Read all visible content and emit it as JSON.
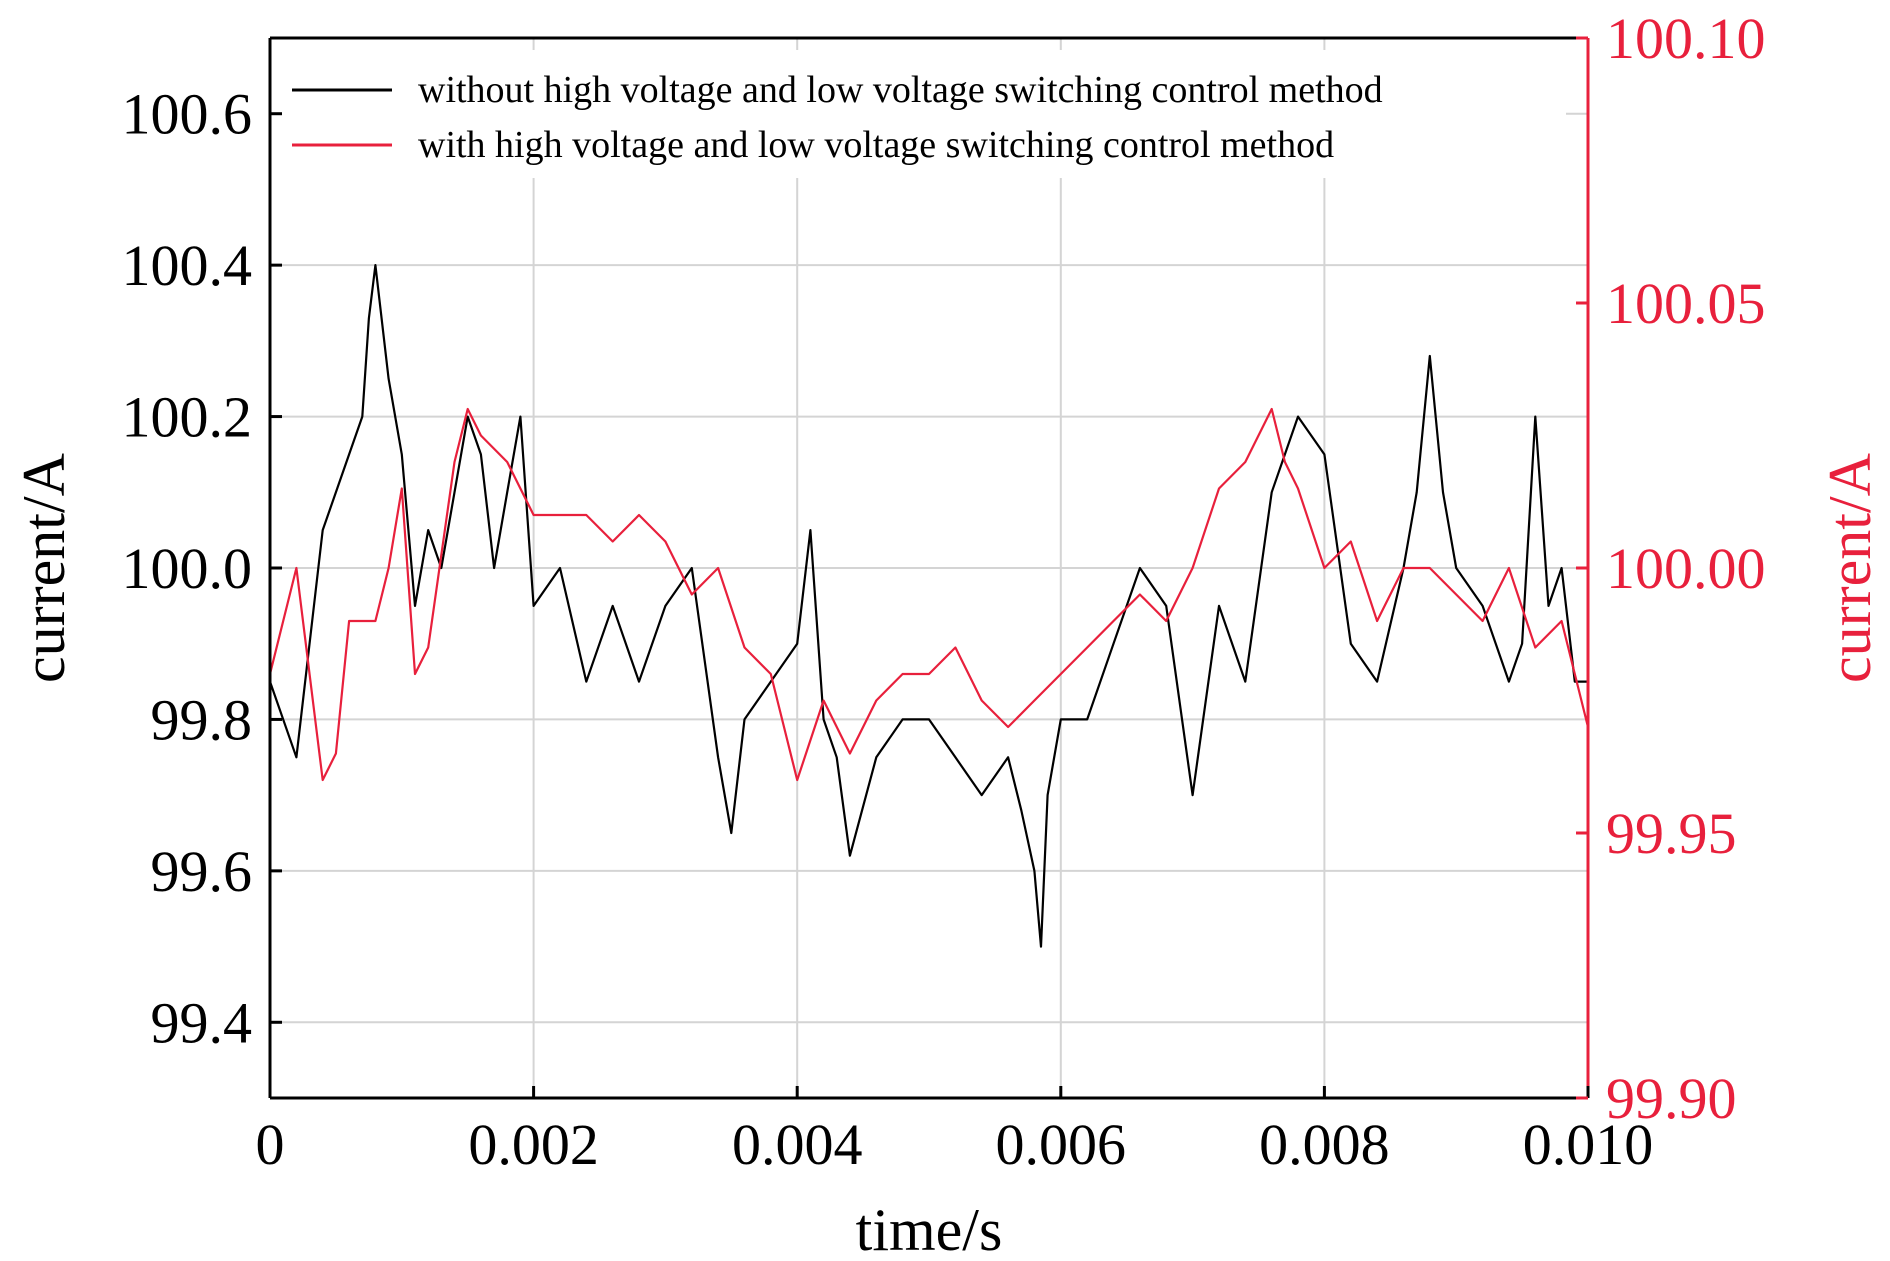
{
  "chart_data": {
    "type": "line",
    "xlabel": "time/s",
    "ylabel_left": "current/A",
    "ylabel_right": "current/A",
    "xlim": [
      0,
      0.01
    ],
    "ylim_left": [
      99.3,
      100.7
    ],
    "ylim_right": [
      99.9,
      100.1
    ],
    "xticks": [
      0,
      0.002,
      0.004,
      0.006,
      0.008,
      0.01
    ],
    "xtick_labels": [
      "0",
      "0.002",
      "0.004",
      "0.006",
      "0.008",
      "0.010"
    ],
    "yticks_left": [
      99.4,
      99.6,
      99.8,
      100.0,
      100.2,
      100.4,
      100.6
    ],
    "ytick_labels_left": [
      "99.4",
      "99.6",
      "99.8",
      "100.0",
      "100.2",
      "100.4",
      "100.6"
    ],
    "yticks_right": [
      99.9,
      99.95,
      100.0,
      100.05,
      100.1
    ],
    "ytick_labels_right": [
      "99.90",
      "99.95",
      "100.00",
      "100.05",
      "100.10"
    ],
    "grid": true,
    "legend_position": "top",
    "colors": {
      "series1": "#000000",
      "series2": "#e8203c",
      "grid": "#d4d4d4",
      "right_axis": "#e8203c"
    },
    "series": [
      {
        "name": "without high voltage and low voltage switching control method",
        "axis": "left",
        "x": [
          0,
          0.0002,
          0.0004,
          0.0005,
          0.0006,
          0.0007,
          0.00075,
          0.0008,
          0.0009,
          0.001,
          0.0011,
          0.0012,
          0.0013,
          0.0014,
          0.0015,
          0.0016,
          0.0017,
          0.0018,
          0.0019,
          0.002,
          0.0022,
          0.0024,
          0.0025,
          0.0026,
          0.0028,
          0.003,
          0.0032,
          0.0034,
          0.0035,
          0.0036,
          0.0038,
          0.004,
          0.0041,
          0.0042,
          0.0043,
          0.0044,
          0.0046,
          0.0048,
          0.005,
          0.0052,
          0.0054,
          0.0056,
          0.0057,
          0.0058,
          0.00585,
          0.0059,
          0.006,
          0.0062,
          0.0064,
          0.0066,
          0.0068,
          0.007,
          0.0072,
          0.0074,
          0.0076,
          0.0078,
          0.008,
          0.0082,
          0.0084,
          0.0086,
          0.0087,
          0.0088,
          0.0089,
          0.009,
          0.0092,
          0.0094,
          0.0095,
          0.0096,
          0.0097,
          0.0098,
          0.0099,
          0.01
        ],
        "y": [
          99.85,
          99.75,
          100.05,
          100.1,
          100.15,
          100.2,
          100.33,
          100.4,
          100.25,
          100.15,
          99.95,
          100.05,
          100.0,
          100.1,
          100.2,
          100.15,
          100.0,
          100.1,
          100.2,
          99.95,
          100.0,
          99.85,
          99.9,
          99.95,
          99.85,
          99.95,
          100.0,
          99.75,
          99.65,
          99.8,
          99.85,
          99.9,
          100.05,
          99.8,
          99.75,
          99.62,
          99.75,
          99.8,
          99.8,
          99.75,
          99.7,
          99.75,
          99.68,
          99.6,
          99.5,
          99.7,
          99.8,
          99.8,
          99.9,
          100.0,
          99.95,
          99.7,
          99.95,
          99.85,
          100.1,
          100.2,
          100.15,
          99.9,
          99.85,
          100.0,
          100.1,
          100.28,
          100.1,
          100.0,
          99.95,
          99.85,
          99.9,
          100.2,
          99.95,
          100.0,
          99.85,
          99.85
        ]
      },
      {
        "name": "with high voltage and low voltage switching control method",
        "axis": "right",
        "x": [
          0,
          0.0002,
          0.0004,
          0.0005,
          0.0006,
          0.0008,
          0.0009,
          0.001,
          0.0011,
          0.0012,
          0.0014,
          0.0015,
          0.0016,
          0.0018,
          0.002,
          0.0022,
          0.0024,
          0.0026,
          0.0028,
          0.003,
          0.0032,
          0.0034,
          0.0036,
          0.0038,
          0.004,
          0.0042,
          0.0044,
          0.0046,
          0.0048,
          0.005,
          0.0052,
          0.0054,
          0.0056,
          0.0058,
          0.006,
          0.0062,
          0.0064,
          0.0066,
          0.0068,
          0.007,
          0.0072,
          0.0074,
          0.0076,
          0.0077,
          0.0078,
          0.008,
          0.0082,
          0.0084,
          0.0086,
          0.0088,
          0.009,
          0.0092,
          0.0094,
          0.0096,
          0.0098,
          0.01
        ],
        "y": [
          99.98,
          100.0,
          99.96,
          99.965,
          99.99,
          99.99,
          100.0,
          100.015,
          99.98,
          99.985,
          100.02,
          100.03,
          100.025,
          100.02,
          100.01,
          100.01,
          100.01,
          100.005,
          100.01,
          100.005,
          99.995,
          100.0,
          99.985,
          99.98,
          99.96,
          99.975,
          99.965,
          99.975,
          99.98,
          99.98,
          99.985,
          99.975,
          99.97,
          99.975,
          99.98,
          99.985,
          99.99,
          99.995,
          99.99,
          100.0,
          100.015,
          100.02,
          100.03,
          100.02,
          100.015,
          100.0,
          100.005,
          99.99,
          100.0,
          100.0,
          99.995,
          99.99,
          100.0,
          99.985,
          99.99,
          99.97
        ]
      }
    ]
  }
}
